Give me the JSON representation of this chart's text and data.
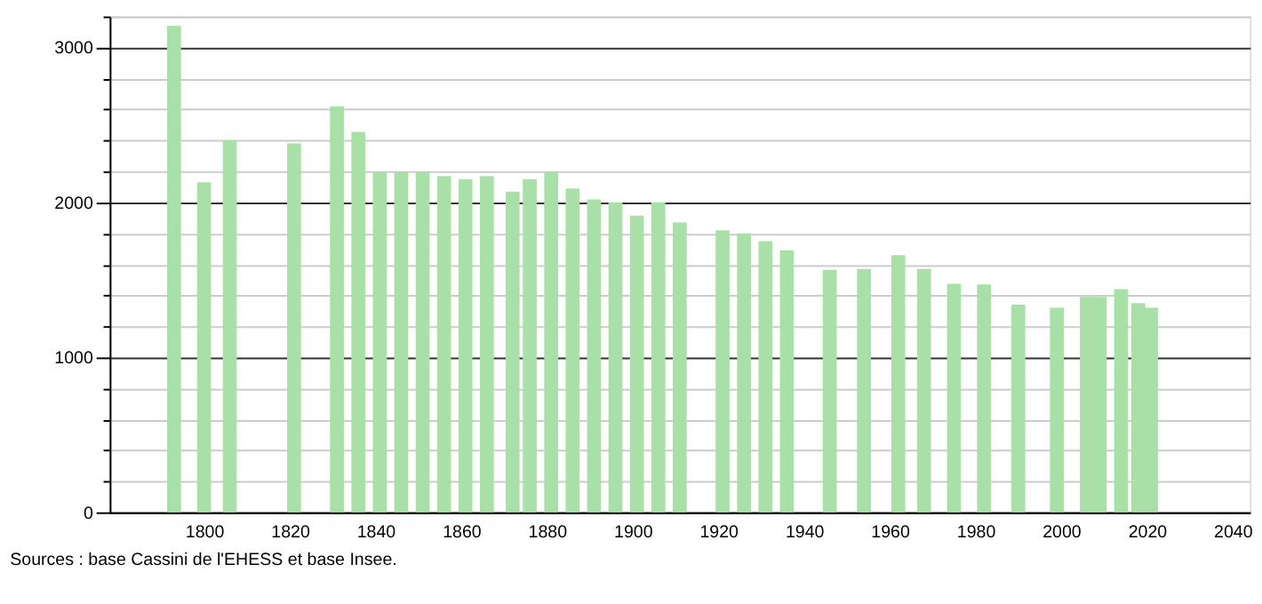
{
  "chart_data": {
    "type": "bar",
    "color": "#a8e0a8",
    "x": [
      1793,
      1800,
      1806,
      1821,
      1831,
      1836,
      1841,
      1846,
      1851,
      1856,
      1861,
      1866,
      1872,
      1876,
      1881,
      1886,
      1891,
      1896,
      1901,
      1906,
      1911,
      1921,
      1926,
      1931,
      1936,
      1946,
      1954,
      1962,
      1968,
      1975,
      1982,
      1990,
      1999,
      2006,
      2009,
      2014,
      2018,
      2021
    ],
    "values": [
      3140,
      2130,
      2400,
      2380,
      2620,
      2455,
      2200,
      2200,
      2200,
      2170,
      2150,
      2170,
      2070,
      2150,
      2200,
      2090,
      2020,
      2000,
      1915,
      2000,
      1870,
      1820,
      1800,
      1750,
      1690,
      1565,
      1570,
      1660,
      1570,
      1475,
      1470,
      1340,
      1320,
      1390,
      1390,
      1440,
      1350,
      1320
    ],
    "xlim": [
      1780,
      2042
    ],
    "xticks": [
      1800,
      1820,
      1840,
      1860,
      1880,
      1900,
      1920,
      1940,
      1960,
      1980,
      2000,
      2020,
      2040
    ],
    "ylim": [
      0,
      3200
    ],
    "yticks": [
      0,
      {
        "value": 200,
        "label": null
      },
      {
        "value": 400,
        "label": null
      },
      {
        "value": 600,
        "label": null
      },
      {
        "value": 800,
        "label": null
      },
      1000,
      {
        "value": 1200,
        "label": null
      },
      {
        "value": 1400,
        "label": null
      },
      {
        "value": 1600,
        "label": null
      },
      {
        "value": 1800,
        "label": null
      },
      2000,
      {
        "value": 2200,
        "label": null
      },
      {
        "value": 2400,
        "label": null
      },
      {
        "value": 2600,
        "label": null
      },
      {
        "value": 2800,
        "label": null
      },
      3000,
      {
        "value": 3200,
        "label": null
      }
    ],
    "grid": "y",
    "annotations": [
      "Sources : base Cassini de l'EHESS et base Insee."
    ]
  }
}
